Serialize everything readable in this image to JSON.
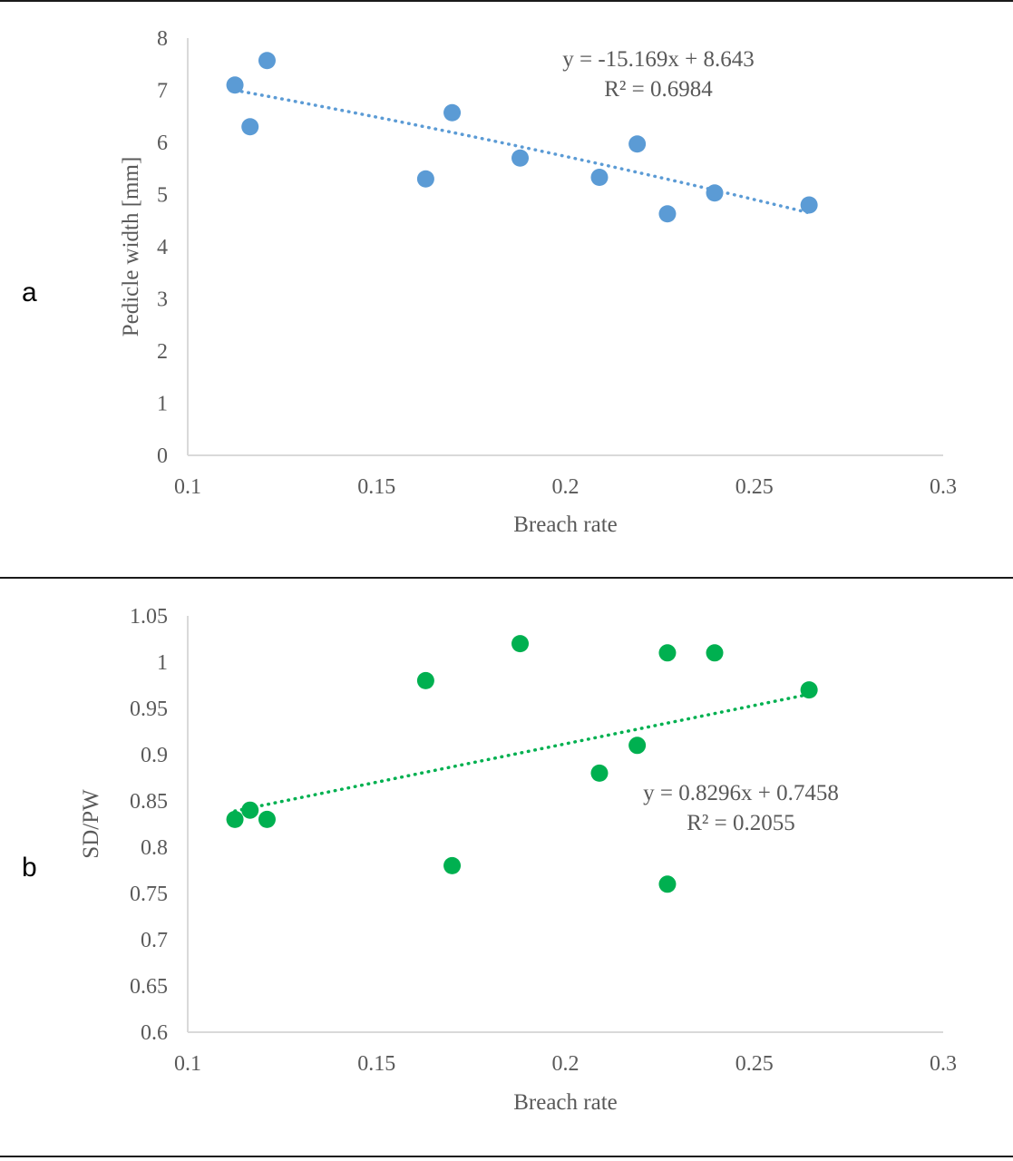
{
  "panels": [
    {
      "label": "a"
    },
    {
      "label": "b"
    }
  ],
  "chart_data": [
    {
      "type": "scatter",
      "title": "",
      "xlabel": "Breach rate",
      "ylabel": "Pedicle width [mm]",
      "xlim": [
        0.1,
        0.3
      ],
      "ylim": [
        0,
        8
      ],
      "xticks": [
        "0.1",
        "0.15",
        "0.2",
        "0.25",
        "0.3"
      ],
      "yticks": [
        "0",
        "1",
        "2",
        "3",
        "4",
        "5",
        "6",
        "7",
        "8"
      ],
      "grid": false,
      "color": "#5b9bd5",
      "points": [
        {
          "x": 0.1125,
          "y": 7.1
        },
        {
          "x": 0.1165,
          "y": 6.3
        },
        {
          "x": 0.121,
          "y": 7.57
        },
        {
          "x": 0.163,
          "y": 5.3
        },
        {
          "x": 0.17,
          "y": 6.57
        },
        {
          "x": 0.188,
          "y": 5.7
        },
        {
          "x": 0.209,
          "y": 5.33
        },
        {
          "x": 0.219,
          "y": 5.97
        },
        {
          "x": 0.227,
          "y": 4.63
        },
        {
          "x": 0.2395,
          "y": 5.03
        },
        {
          "x": 0.2645,
          "y": 4.8
        }
      ],
      "trendline": {
        "type": "polynomial",
        "x_range": [
          0.1125,
          0.2645
        ],
        "y_values": [
          7.0,
          4.65
        ]
      },
      "equation": "y = -15.169x + 8.643",
      "r_squared": "R² = 0.6984"
    },
    {
      "type": "scatter",
      "title": "",
      "xlabel": "Breach rate",
      "ylabel": "SD/PW",
      "xlim": [
        0.1,
        0.3
      ],
      "ylim": [
        0.6,
        1.05
      ],
      "xticks": [
        "0.1",
        "0.15",
        "0.2",
        "0.25",
        "0.3"
      ],
      "yticks": [
        "0.6",
        "0.65",
        "0.7",
        "0.75",
        "0.8",
        "0.85",
        "0.9",
        "0.95",
        "1",
        "1.05"
      ],
      "grid": false,
      "color": "#00b050",
      "points": [
        {
          "x": 0.1125,
          "y": 0.83
        },
        {
          "x": 0.1165,
          "y": 0.84
        },
        {
          "x": 0.121,
          "y": 0.83
        },
        {
          "x": 0.163,
          "y": 0.98
        },
        {
          "x": 0.17,
          "y": 0.78
        },
        {
          "x": 0.188,
          "y": 1.02
        },
        {
          "x": 0.209,
          "y": 0.88
        },
        {
          "x": 0.219,
          "y": 0.91
        },
        {
          "x": 0.227,
          "y": 1.01
        },
        {
          "x": 0.227,
          "y": 0.76
        },
        {
          "x": 0.2395,
          "y": 1.01
        },
        {
          "x": 0.2645,
          "y": 0.97
        }
      ],
      "trendline": {
        "type": "linear",
        "slope": 0.8296,
        "intercept": 0.7458,
        "x_range": [
          0.1125,
          0.2645
        ]
      },
      "equation": "y = 0.8296x + 0.7458",
      "r_squared": "R² = 0.2055"
    }
  ]
}
